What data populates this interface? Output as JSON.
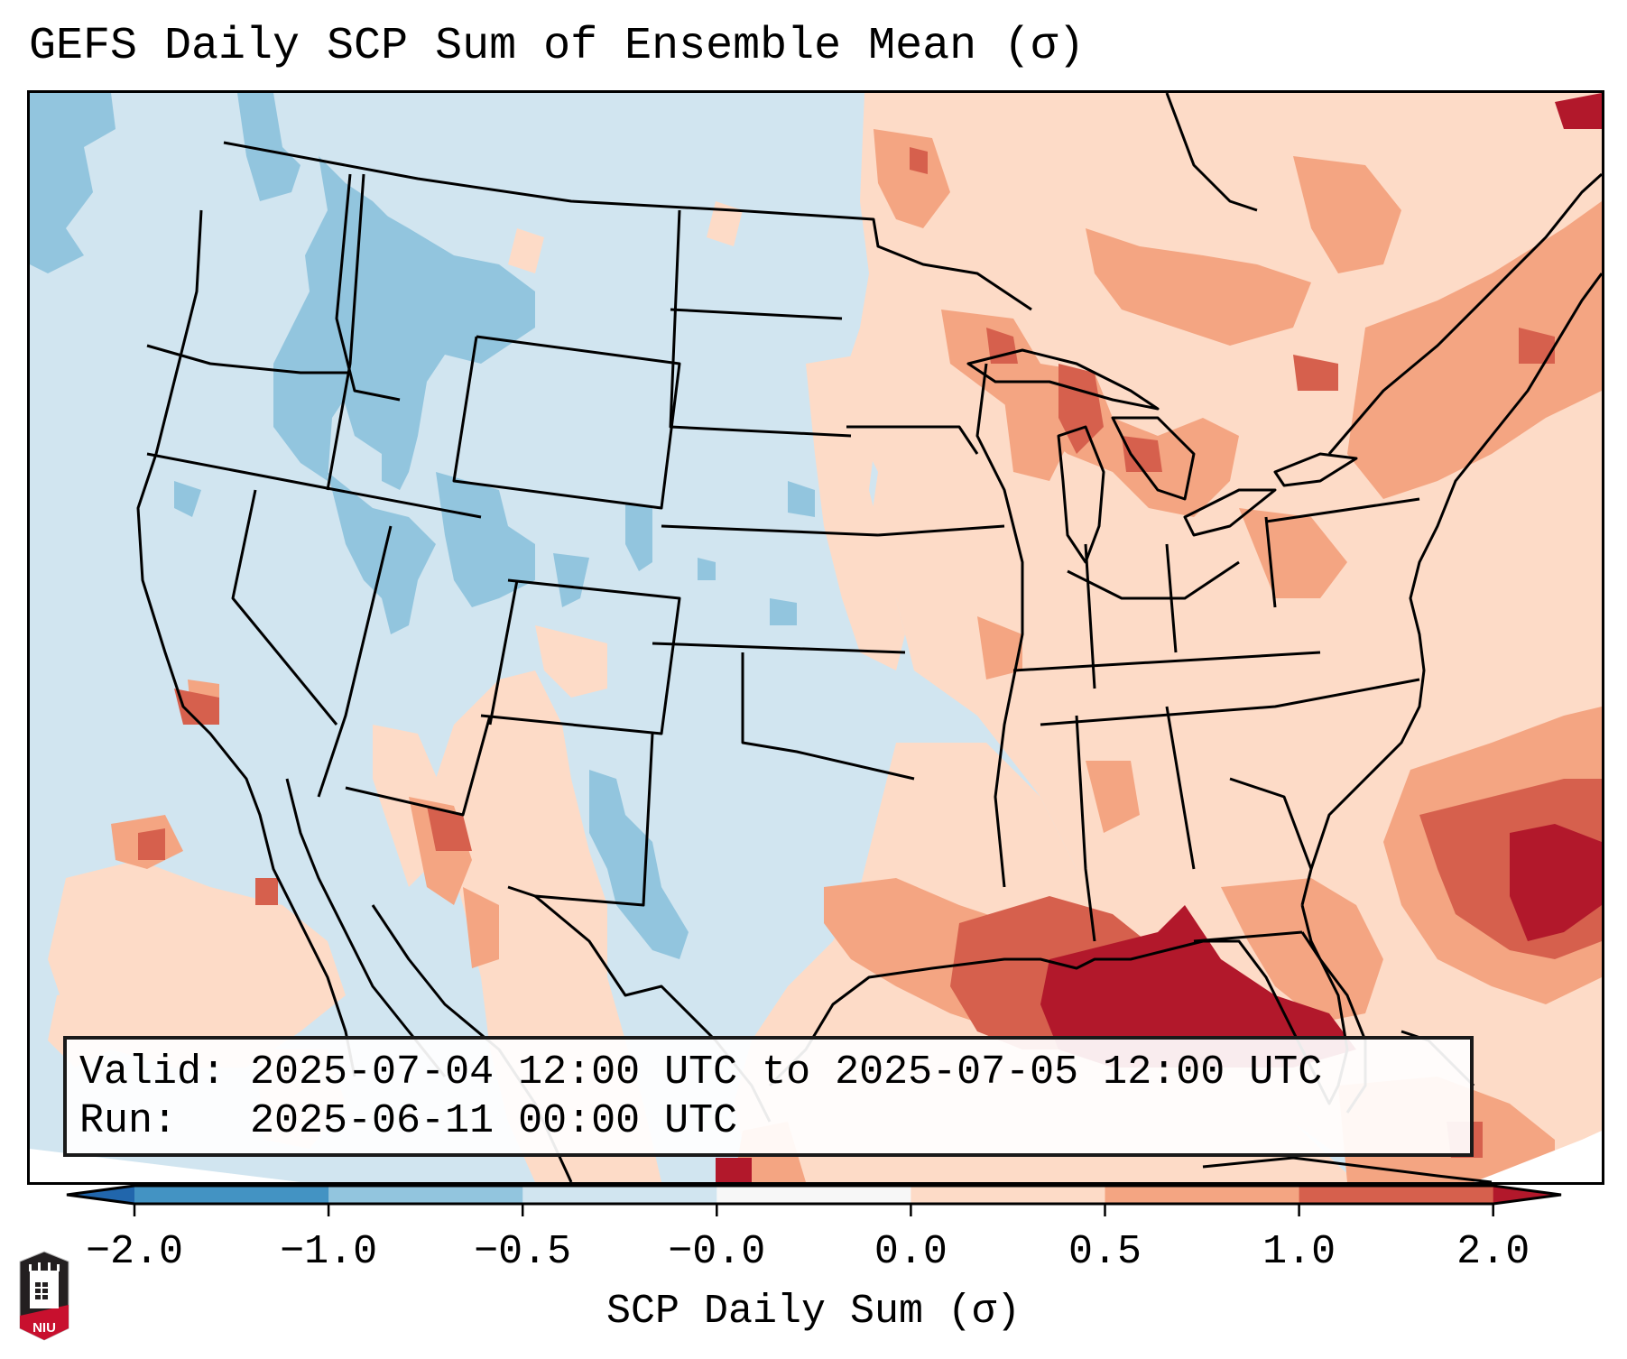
{
  "title": "GEFS Daily SCP Sum of Ensemble Mean (σ)",
  "info": {
    "valid_line": "Valid: 2025-07-04 12:00 UTC to 2025-07-05 12:00 UTC",
    "run_line": "Run:   2025-06-11 00:00 UTC"
  },
  "colorbar": {
    "label": "SCP Daily Sum (σ)",
    "tick_labels": [
      "−2.0",
      "−1.0",
      "−0.5",
      "−0.0",
      "0.0",
      "0.5",
      "1.0",
      "2.0"
    ],
    "bins": [
      {
        "from": "-2.0",
        "to": "-1.0",
        "color": "#4393c3"
      },
      {
        "from": "-1.0",
        "to": "-0.5",
        "color": "#92c5de"
      },
      {
        "from": "-0.5",
        "to": "-0.0",
        "color": "#d1e5f0"
      },
      {
        "from": "-0.0",
        "to": "0.0",
        "color": "#f7f7f7"
      },
      {
        "from": "0.0",
        "to": "0.5",
        "color": "#fddbc7"
      },
      {
        "from": "0.5",
        "to": "1.0",
        "color": "#f4a582"
      },
      {
        "from": "1.0",
        "to": "2.0",
        "color": "#d6604d"
      }
    ],
    "extend_low_color": "#2166ac",
    "extend_high_color": "#b2182b"
  },
  "map": {
    "region": "Contiguous United States, southern Canada, northern Mexico, Gulf of Mexico, western Atlantic",
    "background_color": "#d1e5f0",
    "boundary_color": "#000000"
  },
  "logo": {
    "text": "NIU",
    "name": "Northern Illinois University"
  }
}
